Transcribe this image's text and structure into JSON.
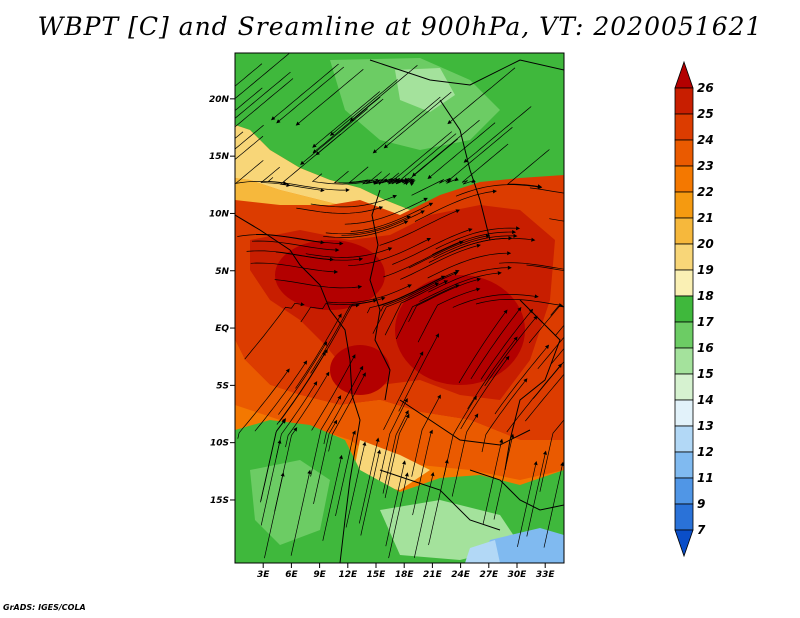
{
  "title": "WBPT [C] and Sreamline at 900hPa, VT: 2020051621",
  "credit": "GrADS: IGES/COLA",
  "map": {
    "variable": "WBPT [C]",
    "overlay": "Sreamline",
    "level": "900hPa",
    "valid_time": "2020051621",
    "lon_range": [
      0,
      35
    ],
    "lat_range": [
      -20.5,
      24
    ]
  },
  "lat_ticks": [
    {
      "value": 20,
      "label": "20N"
    },
    {
      "value": 15,
      "label": "15N"
    },
    {
      "value": 10,
      "label": "10N"
    },
    {
      "value": 5,
      "label": "5N"
    },
    {
      "value": 0,
      "label": "EQ"
    },
    {
      "value": -5,
      "label": "5S"
    },
    {
      "value": -10,
      "label": "10S"
    },
    {
      "value": -15,
      "label": "15S"
    }
  ],
  "lon_ticks": [
    {
      "value": 3,
      "label": "3E"
    },
    {
      "value": 6,
      "label": "6E"
    },
    {
      "value": 9,
      "label": "9E"
    },
    {
      "value": 12,
      "label": "12E"
    },
    {
      "value": 15,
      "label": "15E"
    },
    {
      "value": 18,
      "label": "18E"
    },
    {
      "value": 21,
      "label": "21E"
    },
    {
      "value": 24,
      "label": "24E"
    },
    {
      "value": 27,
      "label": "27E"
    },
    {
      "value": 30,
      "label": "30E"
    },
    {
      "value": 33,
      "label": "33E"
    }
  ],
  "colorbar": {
    "labels": [
      "26",
      "25",
      "24",
      "23",
      "22",
      "21",
      "20",
      "19",
      "18",
      "17",
      "16",
      "15",
      "14",
      "13",
      "12",
      "11",
      "9",
      "7"
    ],
    "colors": [
      "#b30000",
      "#c81e00",
      "#dc3c00",
      "#ea5a00",
      "#f47800",
      "#f59a10",
      "#f6b83c",
      "#f8d678",
      "#faf0b4",
      "#3fb83c",
      "#6ccc64",
      "#a4e29c",
      "#d6f2d0",
      "#e2f2fa",
      "#b2d8f6",
      "#80baf0",
      "#5096e6",
      "#2a72d8",
      "#0a4ec8"
    ]
  }
}
